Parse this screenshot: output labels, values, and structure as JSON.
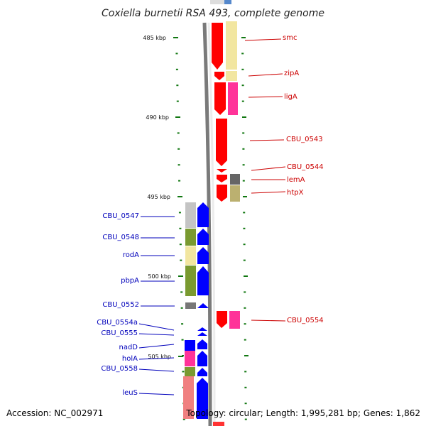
{
  "title": "Coxiella burnetii RSA 493, complete genome",
  "footer": {
    "accession": "Accession: NC_002971",
    "stats": "Topology: circular; Length: 1,995,281 bp; Genes: 1,862"
  },
  "colors": {
    "forward_label": "#cc0000",
    "reverse_label": "#0000bb",
    "forward_gene": "#ff0000",
    "reverse_gene": "#0000ff",
    "tick": "#117711",
    "backbone": "#888888"
  },
  "kbp_marks": [
    "485 kbp",
    "490 kbp",
    "495 kbp",
    "500 kbp",
    "505 kbp"
  ],
  "forward_labels": [
    "smc",
    "zipA",
    "ligA",
    "CBU_0543",
    "CBU_0544",
    "lemA",
    "htpX",
    "CBU_0554"
  ],
  "reverse_labels": [
    "CBU_0547",
    "CBU_0548",
    "rodA",
    "pbpA",
    "CBU_0552",
    "CBU_0554a",
    "CBU_0555",
    "nadD",
    "holA",
    "CBU_0558",
    "leuS"
  ]
}
